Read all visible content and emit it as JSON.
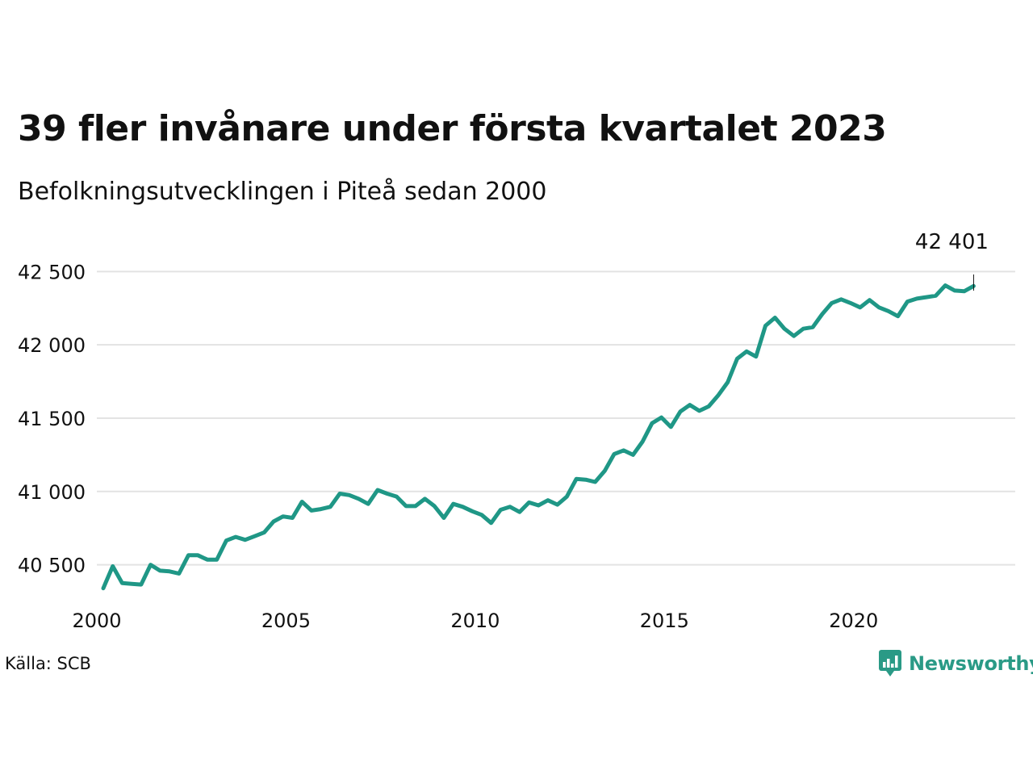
{
  "title": "39 fler invånare under första kvartalet 2023",
  "subtitle": "Befolkningsutvecklingen i Piteå sedan 2000",
  "source": "Källa: SCB",
  "brand": "Newsworthy",
  "colors": {
    "line": "#1f9786",
    "grid": "#e3e3e3",
    "brand": "#2a9a86",
    "text": "#111111"
  },
  "chart_data": {
    "type": "line",
    "ylim": [
      40250,
      42700
    ],
    "xlim": [
      2000,
      2024.1
    ],
    "y_ticks": [
      40500,
      41000,
      41500,
      42000,
      42500
    ],
    "y_tick_labels": [
      "40 500",
      "41 000",
      "41 500",
      "42 000",
      "42 500"
    ],
    "x_ticks": [
      2000,
      2005,
      2010,
      2015,
      2020
    ],
    "x_tick_labels": [
      "2000",
      "2005",
      "2010",
      "2015",
      "2020"
    ],
    "grid": "horizontal",
    "annotation": {
      "x": 2023.0,
      "y": 42401,
      "label": "42 401"
    },
    "series": [
      {
        "x": [
          2000.0,
          2000.25,
          2000.5,
          2000.75,
          2001.0,
          2001.25,
          2001.5,
          2001.75,
          2002.0,
          2002.25,
          2002.5,
          2002.75,
          2003.0,
          2003.25,
          2003.5,
          2003.75,
          2004.0,
          2004.25,
          2004.5,
          2004.75,
          2005.0,
          2005.25,
          2005.5,
          2005.75,
          2006.0,
          2006.25,
          2006.5,
          2006.75,
          2007.0,
          2007.25,
          2007.5,
          2007.75,
          2008.0,
          2008.25,
          2008.5,
          2008.75,
          2009.0,
          2009.25,
          2009.5,
          2009.75,
          2010.0,
          2010.25,
          2010.5,
          2010.75,
          2011.0,
          2011.25,
          2011.5,
          2011.75,
          2012.0,
          2012.25,
          2012.5,
          2012.75,
          2013.0,
          2013.25,
          2013.5,
          2013.75,
          2014.0,
          2014.25,
          2014.5,
          2014.75,
          2015.0,
          2015.25,
          2015.5,
          2015.75,
          2016.0,
          2016.25,
          2016.5,
          2016.75,
          2017.0,
          2017.25,
          2017.5,
          2017.75,
          2018.0,
          2018.25,
          2018.5,
          2018.75,
          2019.0,
          2019.25,
          2019.5,
          2019.75,
          2020.0,
          2020.25,
          2020.5,
          2020.75,
          2021.0,
          2021.25,
          2021.5,
          2021.75,
          2022.0,
          2022.25,
          2022.5,
          2022.75,
          2023.0
        ],
        "values": [
          40340,
          40490,
          40375,
          40370,
          40365,
          40500,
          40460,
          40455,
          40440,
          40565,
          40565,
          40535,
          40535,
          40665,
          40690,
          40670,
          40695,
          40720,
          40795,
          40830,
          40820,
          40930,
          40870,
          40880,
          40895,
          40985,
          40975,
          40950,
          40915,
          41010,
          40985,
          40965,
          40900,
          40900,
          40950,
          40900,
          40820,
          40915,
          40895,
          40865,
          40840,
          40785,
          40875,
          40895,
          40860,
          40925,
          40905,
          40940,
          40910,
          40965,
          41085,
          41080,
          41065,
          41140,
          41255,
          41280,
          41250,
          41340,
          41465,
          41505,
          41440,
          41545,
          41590,
          41550,
          41580,
          41655,
          41745,
          41905,
          41955,
          41920,
          42130,
          42185,
          42110,
          42060,
          42110,
          42120,
          42210,
          42285,
          42310,
          42285,
          42255,
          42305,
          42255,
          42230,
          42195,
          42295,
          42315,
          42325,
          42335,
          42405,
          42370,
          42365,
          42401
        ]
      }
    ]
  }
}
